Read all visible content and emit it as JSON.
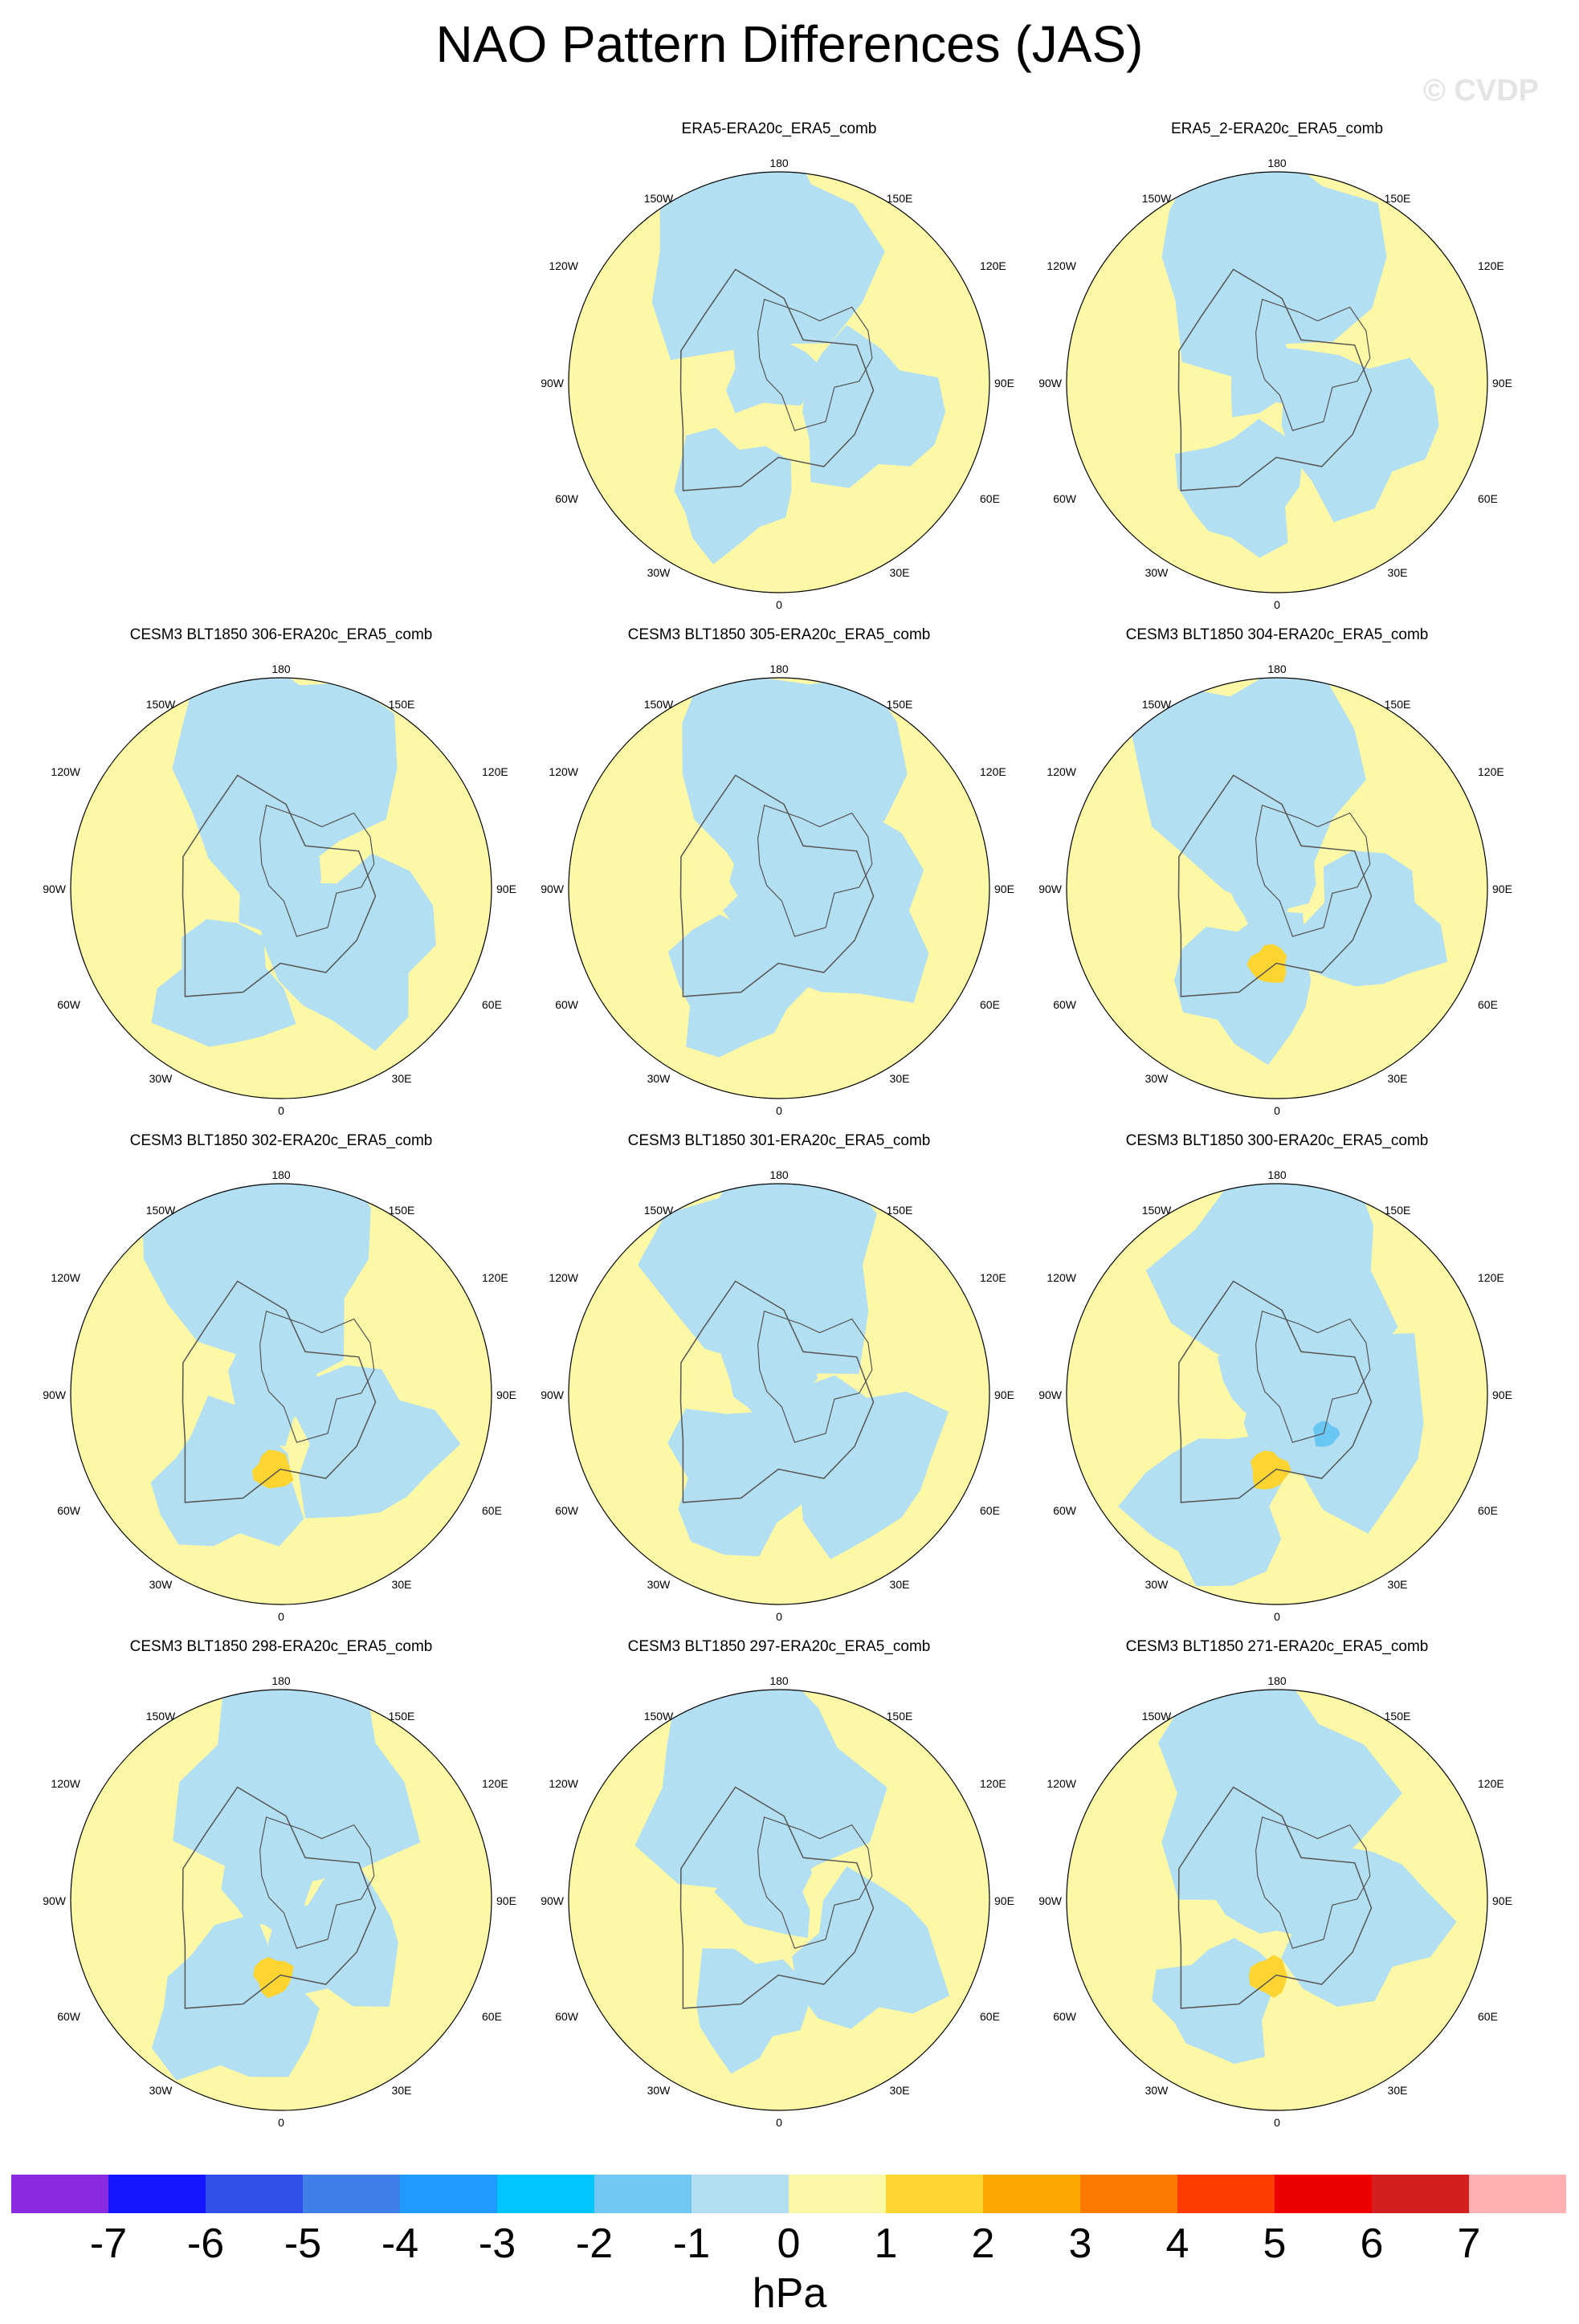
{
  "title": "NAO Pattern Differences (JAS)",
  "watermark": "© CVDP",
  "colors": {
    "land_yellow": "#fdf8a6",
    "light_blue": "#b3dff2",
    "orange": "#fdd430",
    "mid_blue": "#6ac6f2",
    "outline": "#555555"
  },
  "map_labels": {
    "top": "180",
    "bottom": "0",
    "upper_left": "150W",
    "upper_right": "150E",
    "mid_upper_left": "120W",
    "mid_upper_right": "120E",
    "left": "90W",
    "right": "90E",
    "mid_lower_left": "60W",
    "mid_lower_right": "60E",
    "lower_left": "30W",
    "lower_right": "30E"
  },
  "panels": [
    {
      "title": "ERA5-ERA20c_ERA5_comb",
      "hue": 0
    },
    {
      "title": "ERA5_2-ERA20c_ERA5_comb",
      "hue": 1
    },
    {
      "title": "CESM3 BLT1850 306-ERA20c_ERA5_comb",
      "hue": 2
    },
    {
      "title": "CESM3 BLT1850 305-ERA20c_ERA5_comb",
      "hue": 3
    },
    {
      "title": "CESM3 BLT1850 304-ERA20c_ERA5_comb",
      "hue": 4
    },
    {
      "title": "CESM3 BLT1850 302-ERA20c_ERA5_comb",
      "hue": 5
    },
    {
      "title": "CESM3 BLT1850 301-ERA20c_ERA5_comb",
      "hue": 6
    },
    {
      "title": "CESM3 BLT1850 300-ERA20c_ERA5_comb",
      "hue": 7
    },
    {
      "title": "CESM3 BLT1850 298-ERA20c_ERA5_comb",
      "hue": 8
    },
    {
      "title": "CESM3 BLT1850 297-ERA20c_ERA5_comb",
      "hue": 9
    },
    {
      "title": "CESM3 BLT1850 271-ERA20c_ERA5_comb",
      "hue": 10
    }
  ],
  "colorbar": {
    "colors": [
      "#8a2be2",
      "#1515ff",
      "#2f4fe6",
      "#3f7fe8",
      "#1f9bff",
      "#00c5ff",
      "#70c8f2",
      "#b3dff2",
      "#fdf8a6",
      "#fdd430",
      "#fda800",
      "#fd7a00",
      "#fd3a00",
      "#ee0000",
      "#d41f1f",
      "#feb0b0"
    ],
    "ticks": [
      "-7",
      "-6",
      "-5",
      "-4",
      "-3",
      "-2",
      "-1",
      "0",
      "1",
      "2",
      "3",
      "4",
      "5",
      "6",
      "7"
    ],
    "units": "hPa"
  }
}
